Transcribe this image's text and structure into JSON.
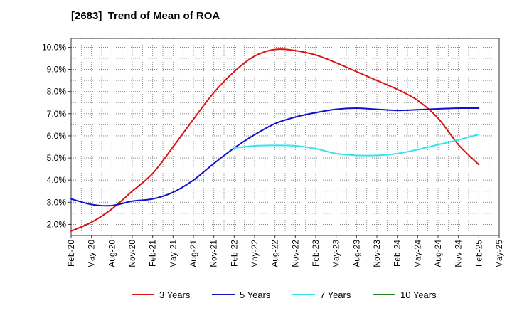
{
  "chart_data": {
    "type": "line",
    "title": "[2683]  Trend of Mean of ROA",
    "xlabel": "",
    "ylabel": "",
    "ylim": [
      1.5,
      10.4
    ],
    "yticks": [
      2.0,
      3.0,
      4.0,
      5.0,
      6.0,
      7.0,
      8.0,
      9.0,
      10.0
    ],
    "ytick_labels": [
      "2.0%",
      "3.0%",
      "4.0%",
      "5.0%",
      "6.0%",
      "7.0%",
      "8.0%",
      "9.0%",
      "10.0%"
    ],
    "categories": [
      "Feb-20",
      "May-20",
      "Aug-20",
      "Nov-20",
      "Feb-21",
      "May-21",
      "Aug-21",
      "Nov-21",
      "Feb-22",
      "May-22",
      "Aug-22",
      "Nov-22",
      "Feb-23",
      "May-23",
      "Aug-23",
      "Nov-23",
      "Feb-24",
      "May-24",
      "Aug-24",
      "Nov-24",
      "Feb-25",
      "May-25"
    ],
    "grid": true,
    "legend_position": "bottom",
    "series": [
      {
        "name": "3 Years",
        "color": "#dd1111",
        "values": [
          1.7,
          2.1,
          2.7,
          3.5,
          4.3,
          5.5,
          6.75,
          7.95,
          8.9,
          9.6,
          9.9,
          9.85,
          9.65,
          9.3,
          8.9,
          8.5,
          8.1,
          7.6,
          6.8,
          5.6,
          4.7,
          null
        ]
      },
      {
        "name": "5 Years",
        "color": "#1111cc",
        "values": [
          3.15,
          2.9,
          2.85,
          3.05,
          3.15,
          3.45,
          4.0,
          4.75,
          5.45,
          6.05,
          6.55,
          6.85,
          7.05,
          7.2,
          7.25,
          7.2,
          7.15,
          7.18,
          7.22,
          7.25,
          7.25,
          null
        ]
      },
      {
        "name": "7 Years",
        "color": "#33e5ee",
        "values": [
          null,
          null,
          null,
          null,
          null,
          null,
          null,
          null,
          5.45,
          5.55,
          5.57,
          5.55,
          5.42,
          5.2,
          5.12,
          5.12,
          5.2,
          5.38,
          5.6,
          5.82,
          6.07,
          null
        ]
      },
      {
        "name": "10 Years",
        "color": "#228822",
        "values": [
          null,
          null,
          null,
          null,
          null,
          null,
          null,
          null,
          null,
          null,
          null,
          null,
          null,
          null,
          null,
          null,
          null,
          null,
          null,
          null,
          null,
          null
        ]
      }
    ]
  }
}
